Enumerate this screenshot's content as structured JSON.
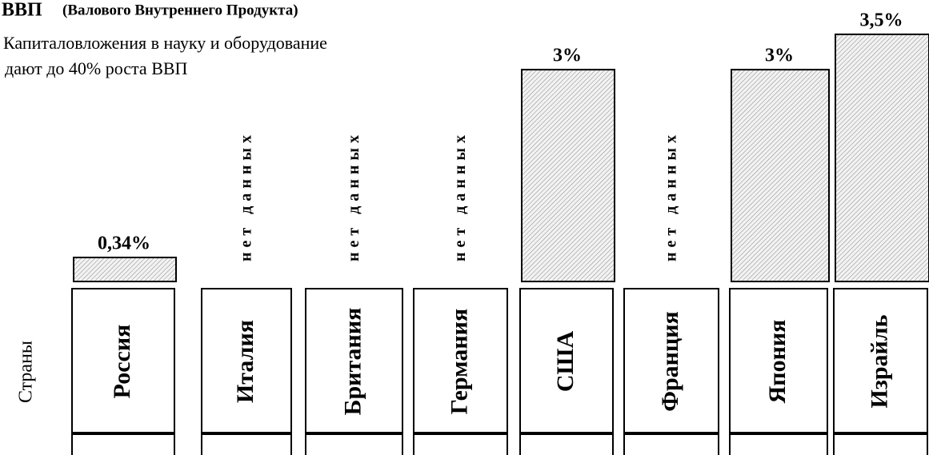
{
  "chart_data": {
    "type": "bar",
    "title": "ВВП",
    "title_note": "(Валового Внутреннего Продукта)",
    "subtitle": [
      "Капиталовложения в науку и оборудование",
      "дают до 40% роста ВВП"
    ],
    "x_label": "Страны",
    "no_data_label": "нет данных",
    "categories": [
      "Россия",
      "Италия",
      "Британия",
      "Германия",
      "США",
      "Франция",
      "Япония",
      "Израйль"
    ],
    "values": [
      0.34,
      null,
      null,
      null,
      3,
      null,
      3,
      3.5
    ],
    "value_labels": [
      "0,34%",
      null,
      null,
      null,
      "3%",
      null,
      "3%",
      "3,5%"
    ]
  }
}
